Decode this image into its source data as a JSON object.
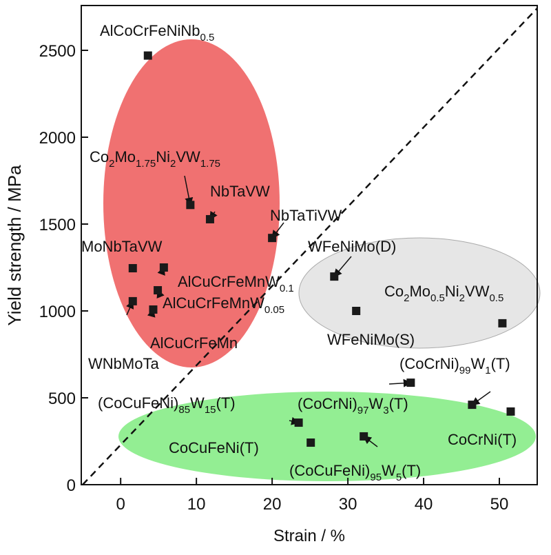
{
  "chart_data": {
    "type": "scatter",
    "x_label": "Strain / %",
    "y_label": "Yield strength / MPa",
    "xlim": [
      -5.2,
      55
    ],
    "ylim": [
      0,
      2758
    ],
    "xticks": [
      0,
      10,
      20,
      30,
      40,
      50
    ],
    "yticks": [
      0,
      500,
      1000,
      1500,
      2000,
      2500
    ],
    "color": "#1a1a1a",
    "points": [
      {
        "label": [
          "AlCoCrFeNiNb",
          "0.5"
        ],
        "x": 3.6,
        "y": 2470
      },
      {
        "label": [
          "Co",
          "2",
          "Mo",
          "1.75",
          "Ni",
          "2",
          "VW",
          "1.75"
        ],
        "x": 9.2,
        "y": 1610
      },
      {
        "label": [
          "NbTaVW"
        ],
        "x": 11.8,
        "y": 1528
      },
      {
        "label": [
          "NbTaTiVW"
        ],
        "x": 20,
        "y": 1420
      },
      {
        "label": [
          "MoNbTaVW"
        ],
        "x": 1.6,
        "y": 1246
      },
      {
        "label": [
          "AlCuCrFeMnW",
          "0.1"
        ],
        "x": 5.7,
        "y": 1250
      },
      {
        "label": [
          "AlCuCrFeMnW",
          "0.05"
        ],
        "x": 4.9,
        "y": 1119
      },
      {
        "label": [
          "WNbMoTa"
        ],
        "x": 1.6,
        "y": 1056
      },
      {
        "label": [
          "AlCuCrFeMn"
        ],
        "x": 4.3,
        "y": 1008
      },
      {
        "label": [
          "WFeNiMo(D)"
        ],
        "x": 28.2,
        "y": 1198
      },
      {
        "label": [
          "WFeNiMo(S)"
        ],
        "x": 31.1,
        "y": 1000
      },
      {
        "label": [
          "Co",
          "2",
          "Mo",
          "0.5",
          "Ni",
          "2",
          "VW",
          "0.5"
        ],
        "x": 50.4,
        "y": 929
      },
      {
        "label": [
          "(CoCrNi)",
          "99",
          "W",
          "1",
          "(T)"
        ],
        "x": 38.3,
        "y": 587
      },
      {
        "label": [
          "(CoCrNi)",
          "97",
          "W",
          "3",
          "(T)"
        ],
        "x": 46.4,
        "y": 460
      },
      {
        "label": [
          "CoCrNi(T)"
        ],
        "x": 51.5,
        "y": 421
      },
      {
        "label": [
          "(CoCuFeNi)",
          "85",
          "W",
          "15",
          "(T)"
        ],
        "x": 23.5,
        "y": 357
      },
      {
        "label": [
          "CoCuFeNi(T)"
        ],
        "x": 25.1,
        "y": 242
      },
      {
        "label": [
          "(CoCuFeNi)",
          "95",
          "W",
          "5",
          "(T)"
        ],
        "x": 32.1,
        "y": 278
      }
    ]
  }
}
